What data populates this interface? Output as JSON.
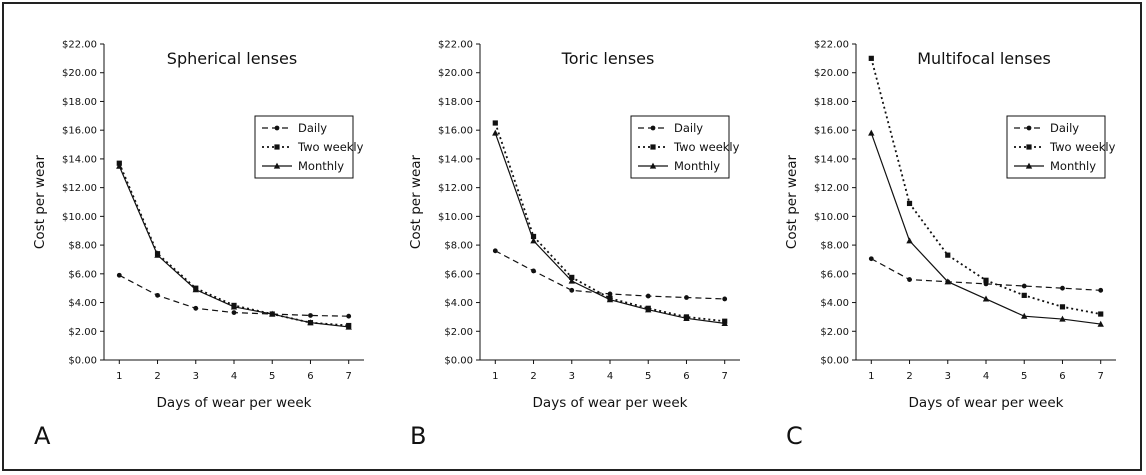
{
  "chart_data": [
    {
      "type": "line",
      "panel_label": "A",
      "title": "Spherical lenses",
      "xlabel": "Days of wear per week",
      "ylabel": "Cost per wear",
      "x": [
        1,
        2,
        3,
        4,
        5,
        6,
        7
      ],
      "xlim": [
        0.6,
        7.4
      ],
      "ylim": [
        0,
        22
      ],
      "yticks": [
        "$0.00",
        "$2.00",
        "$4.00",
        "$6.00",
        "$8.00",
        "$10.00",
        "$12.00",
        "$14.00",
        "$16.00",
        "$18.00",
        "$20.00",
        "$22.00"
      ],
      "legend_position": "top-right",
      "series": [
        {
          "name": "Daily",
          "marker": "circle",
          "dash": "dashed",
          "values": [
            5.9,
            4.5,
            3.6,
            3.3,
            3.2,
            3.1,
            3.05
          ]
        },
        {
          "name": "Two weekly",
          "marker": "square",
          "dash": "dotted",
          "values": [
            13.7,
            7.4,
            5.0,
            3.8,
            3.2,
            2.6,
            2.4
          ]
        },
        {
          "name": "Monthly",
          "marker": "triangle",
          "dash": "solid",
          "values": [
            13.5,
            7.3,
            4.9,
            3.7,
            3.2,
            2.6,
            2.3
          ]
        }
      ]
    },
    {
      "type": "line",
      "panel_label": "B",
      "title": "Toric lenses",
      "xlabel": "Days of wear per week",
      "ylabel": "Cost per wear",
      "x": [
        1,
        2,
        3,
        4,
        5,
        6,
        7
      ],
      "xlim": [
        0.6,
        7.4
      ],
      "ylim": [
        0,
        22
      ],
      "yticks": [
        "$0.00",
        "$2.00",
        "$4.00",
        "$6.00",
        "$8.00",
        "$10.00",
        "$12.00",
        "$14.00",
        "$16.00",
        "$18.00",
        "$20.00",
        "$22.00"
      ],
      "legend_position": "top-right",
      "series": [
        {
          "name": "Daily",
          "marker": "circle",
          "dash": "dashed",
          "values": [
            7.6,
            6.2,
            4.85,
            4.6,
            4.45,
            4.35,
            4.25
          ]
        },
        {
          "name": "Two weekly",
          "marker": "square",
          "dash": "dotted",
          "values": [
            16.5,
            8.6,
            5.75,
            4.3,
            3.6,
            3.0,
            2.7
          ]
        },
        {
          "name": "Monthly",
          "marker": "triangle",
          "dash": "solid",
          "values": [
            15.8,
            8.3,
            5.5,
            4.2,
            3.5,
            2.9,
            2.55
          ]
        }
      ]
    },
    {
      "type": "line",
      "panel_label": "C",
      "title": "Multifocal lenses",
      "xlabel": "Days of wear per week",
      "ylabel": "Cost per wear",
      "x": [
        1,
        2,
        3,
        4,
        5,
        6,
        7
      ],
      "xlim": [
        0.6,
        7.4
      ],
      "ylim": [
        0,
        22
      ],
      "yticks": [
        "$0.00",
        "$2.00",
        "$4.00",
        "$6.00",
        "$8.00",
        "$10.00",
        "$12.00",
        "$14.00",
        "$16.00",
        "$18.00",
        "$20.00",
        "$22.00"
      ],
      "legend_position": "top-right",
      "series": [
        {
          "name": "Daily",
          "marker": "circle",
          "dash": "dashed",
          "values": [
            7.05,
            5.6,
            5.45,
            5.3,
            5.15,
            5.0,
            4.85
          ]
        },
        {
          "name": "Two weekly",
          "marker": "square",
          "dash": "dotted",
          "values": [
            21.0,
            10.9,
            7.3,
            5.55,
            4.5,
            3.7,
            3.2
          ]
        },
        {
          "name": "Monthly",
          "marker": "triangle",
          "dash": "solid",
          "values": [
            15.8,
            8.3,
            5.45,
            4.25,
            3.05,
            2.85,
            2.5
          ]
        }
      ]
    }
  ],
  "colors": {
    "ink": "#111111",
    "frame": "#222222",
    "background": "#ffffff"
  }
}
